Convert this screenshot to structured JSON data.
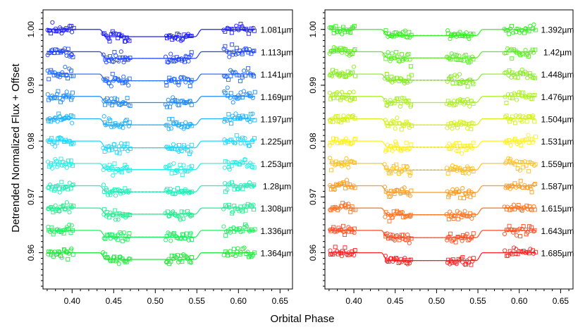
{
  "figure": {
    "ylabel": "Detrended Normalized Flux + Offset",
    "xlabel": "Orbital Phase"
  },
  "chart_data": [
    {
      "type": "scatter",
      "panel": "left",
      "xlim": [
        0.365,
        0.665
      ],
      "ylim": [
        0.9535,
        1.0035
      ],
      "xticks": [
        0.4,
        0.45,
        0.5,
        0.55,
        0.6,
        0.65
      ],
      "xtick_labels": [
        "0.40",
        "0.45",
        "0.50",
        "0.55",
        "0.60",
        "0.65"
      ],
      "yticks": [
        0.96,
        0.97,
        0.98,
        0.99,
        1.0
      ],
      "ytick_labels": [
        "0.96",
        "0.97",
        "0.98",
        "0.99",
        "1.00"
      ],
      "grid": false,
      "data_x_range": [
        0.37,
        0.62
      ],
      "model": {
        "ingress_start": 0.433,
        "ingress_end": 0.441,
        "egress_start": 0.548,
        "egress_end": 0.556
      },
      "series": [
        {
          "label": "1.081µm",
          "baseline": 1.0,
          "depth": 0.0013,
          "color": "#1c1cff"
        },
        {
          "label": "1.113µm",
          "baseline": 0.996,
          "depth": 0.0012,
          "color": "#1f46ff"
        },
        {
          "label": "1.141µm",
          "baseline": 0.992,
          "depth": 0.0012,
          "color": "#1f66ff"
        },
        {
          "label": "1.169µm",
          "baseline": 0.988,
          "depth": 0.0011,
          "color": "#1f8bff"
        },
        {
          "label": "1.197µm",
          "baseline": 0.984,
          "depth": 0.0011,
          "color": "#1fb0ff"
        },
        {
          "label": "1.225µm",
          "baseline": 0.98,
          "depth": 0.0012,
          "color": "#1fd8ff"
        },
        {
          "label": "1.253µm",
          "baseline": 0.976,
          "depth": 0.0011,
          "color": "#1ff0e4"
        },
        {
          "label": "1.28µm",
          "baseline": 0.972,
          "depth": 0.0011,
          "color": "#1ff0b8"
        },
        {
          "label": "1.308µm",
          "baseline": 0.968,
          "depth": 0.0011,
          "color": "#1ff08e"
        },
        {
          "label": "1.336µm",
          "baseline": 0.964,
          "depth": 0.0012,
          "color": "#1ff060"
        },
        {
          "label": "1.364µm",
          "baseline": 0.96,
          "depth": 0.0012,
          "color": "#22e83a"
        }
      ]
    },
    {
      "type": "scatter",
      "panel": "right",
      "xlim": [
        0.365,
        0.665
      ],
      "ylim": [
        0.9535,
        1.0035
      ],
      "xticks": [
        0.4,
        0.45,
        0.5,
        0.55,
        0.6,
        0.65
      ],
      "xtick_labels": [
        "0.40",
        "0.45",
        "0.50",
        "0.55",
        "0.60",
        "0.65"
      ],
      "yticks": [
        0.96,
        0.97,
        0.98,
        0.99,
        1.0
      ],
      "ytick_labels": [
        "0.96",
        "0.97",
        "0.98",
        "0.99",
        "1.00"
      ],
      "grid": false,
      "data_x_range": [
        0.37,
        0.62
      ],
      "model": {
        "ingress_start": 0.433,
        "ingress_end": 0.441,
        "egress_start": 0.548,
        "egress_end": 0.556
      },
      "series": [
        {
          "label": "1.392µm",
          "baseline": 1.0,
          "depth": 0.0011,
          "color": "#33f01f"
        },
        {
          "label": "1.42µm",
          "baseline": 0.996,
          "depth": 0.0011,
          "color": "#5af01f"
        },
        {
          "label": "1.448µm",
          "baseline": 0.992,
          "depth": 0.0011,
          "color": "#86ec1f"
        },
        {
          "label": "1.476µm",
          "baseline": 0.988,
          "depth": 0.0011,
          "color": "#aaf01f"
        },
        {
          "label": "1.504µm",
          "baseline": 0.984,
          "depth": 0.0011,
          "color": "#d4f01f"
        },
        {
          "label": "1.531µm",
          "baseline": 0.98,
          "depth": 0.0011,
          "color": "#fff01f"
        },
        {
          "label": "1.559µm",
          "baseline": 0.976,
          "depth": 0.0012,
          "color": "#ffc01f"
        },
        {
          "label": "1.587µm",
          "baseline": 0.972,
          "depth": 0.0012,
          "color": "#ff9a1f"
        },
        {
          "label": "1.615µm",
          "baseline": 0.968,
          "depth": 0.0012,
          "color": "#ff721f"
        },
        {
          "label": "1.643µm",
          "baseline": 0.964,
          "depth": 0.0013,
          "color": "#ff4a1f"
        },
        {
          "label": "1.685µm",
          "baseline": 0.96,
          "depth": 0.0014,
          "color": "#ff1f1f"
        }
      ]
    }
  ]
}
